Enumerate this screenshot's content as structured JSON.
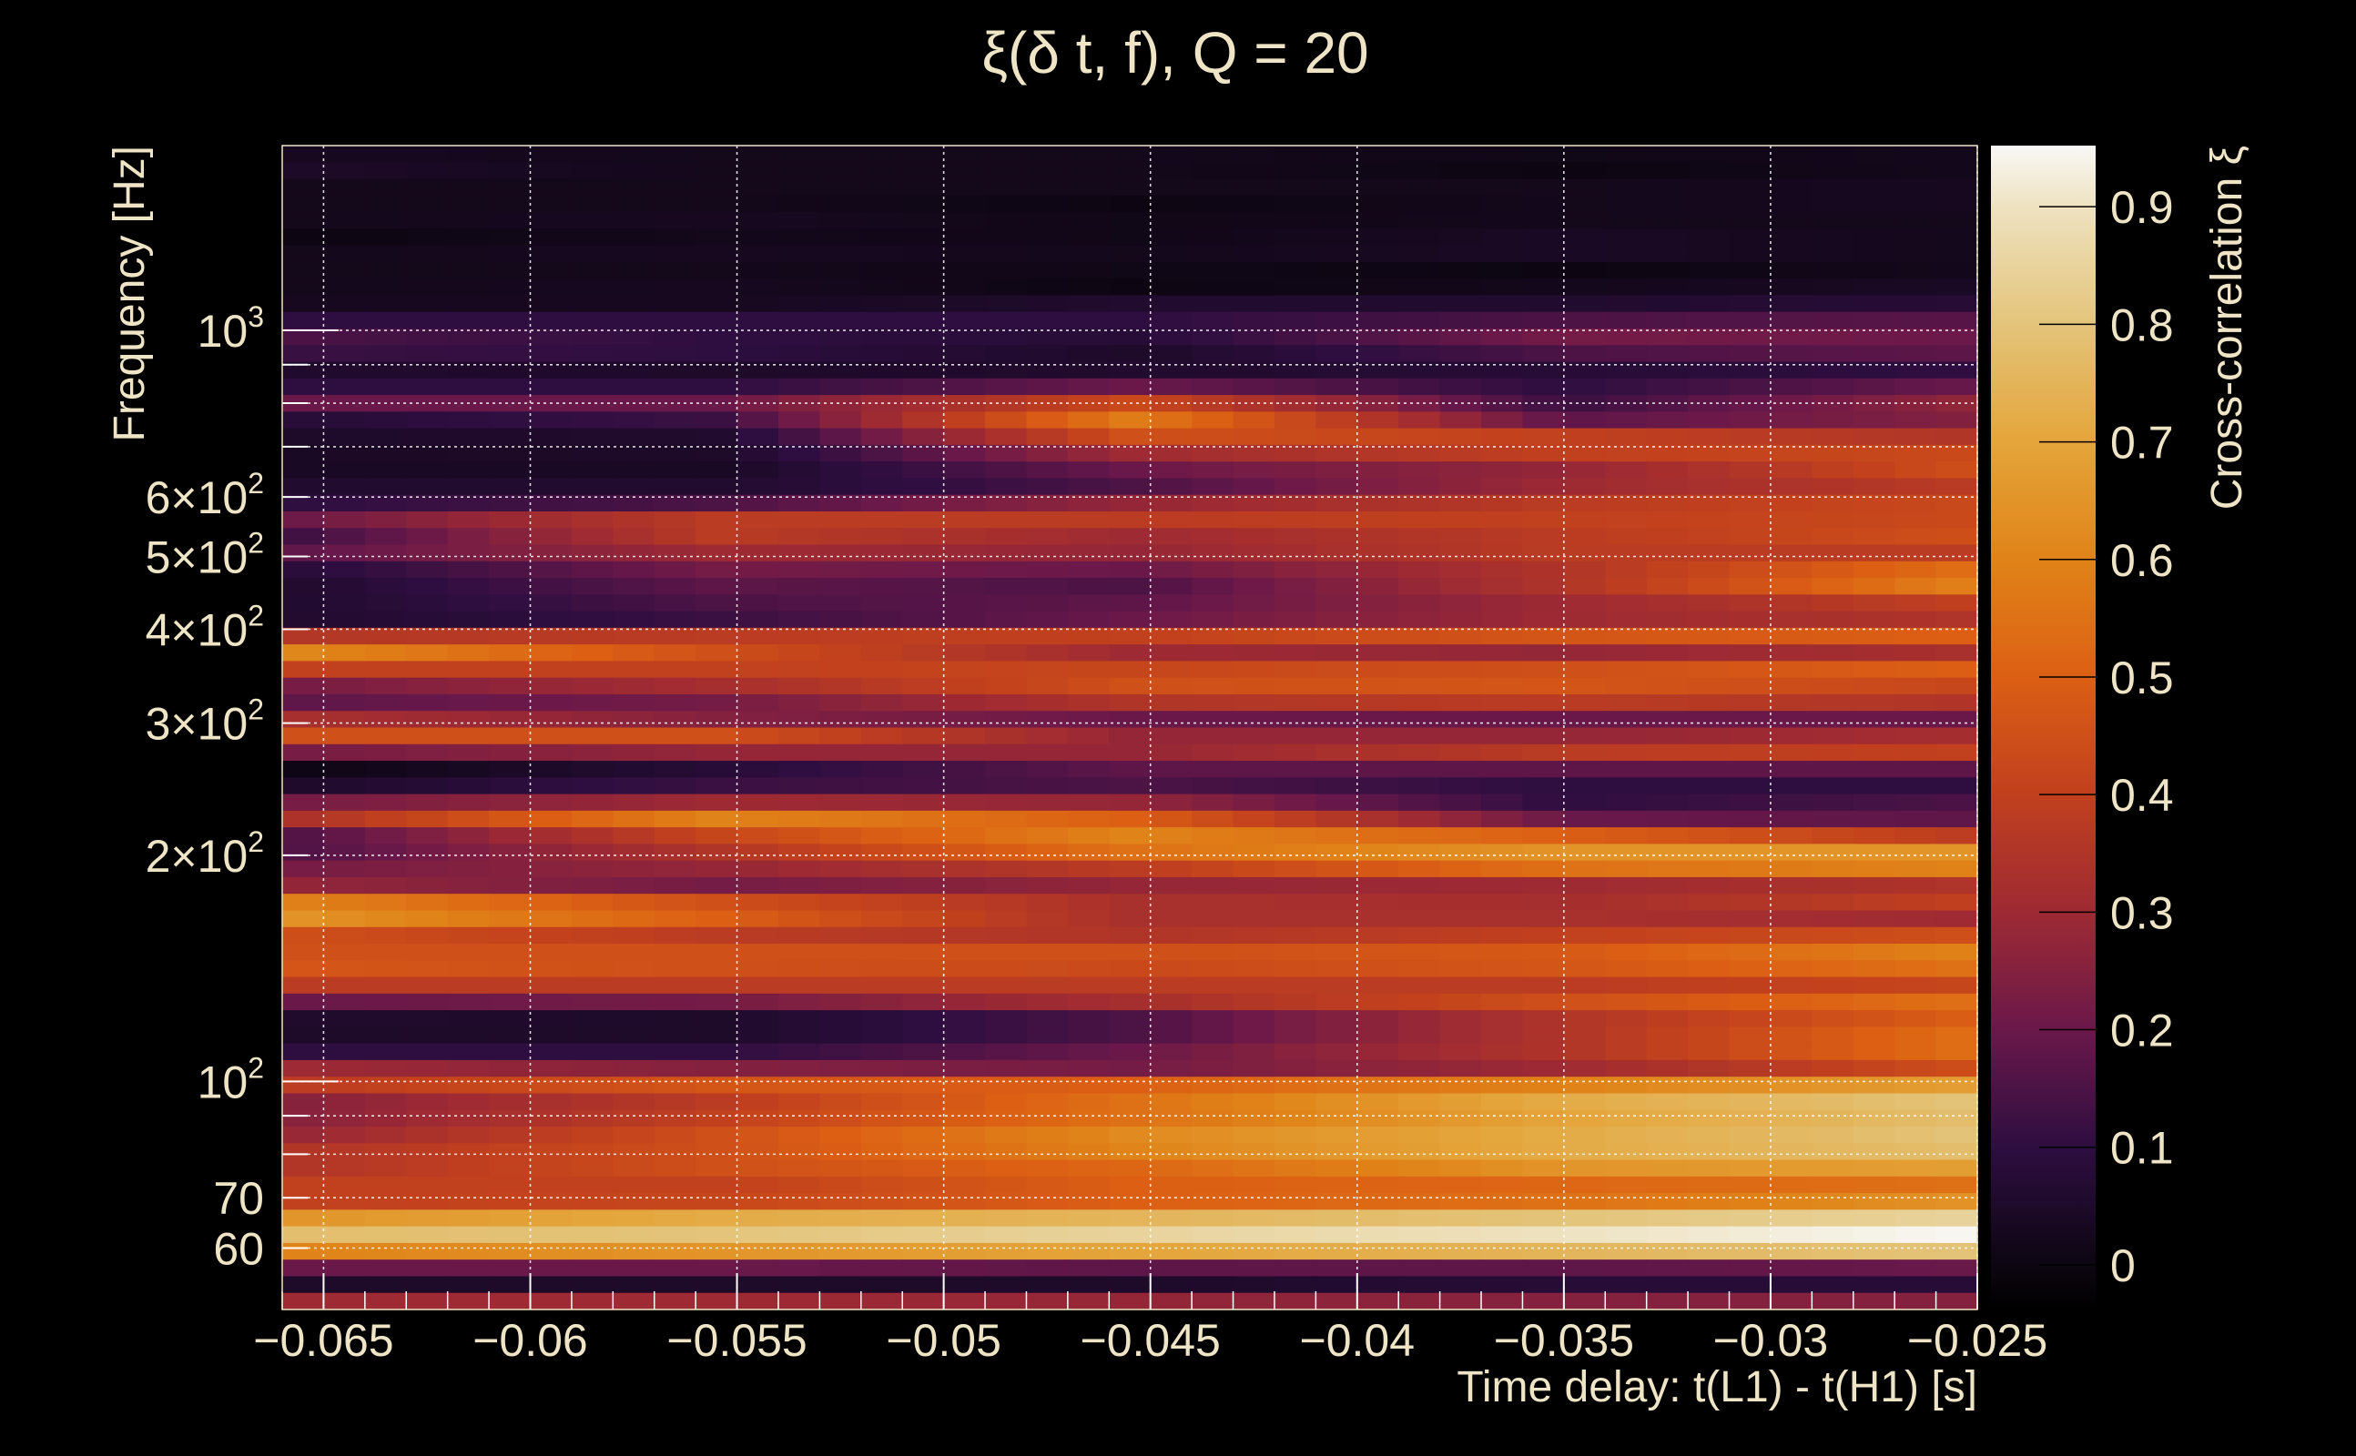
{
  "chart_data": {
    "type": "heatmap",
    "title": "ξ(δ t, f), Q = 20",
    "xlabel": "Time delay: t(L1) - t(H1) [s]",
    "ylabel": "Frequency [Hz]",
    "colorbar_label": "Cross-correlation ξ",
    "x_range": [
      -0.066,
      -0.025
    ],
    "x_bin_width": 0.001,
    "y_range_hz": [
      49.7,
      1762
    ],
    "y_scale": "log",
    "z_range": [
      -0.038,
      0.952
    ],
    "grid": true,
    "x_ticks": [
      -0.065,
      -0.06,
      -0.055,
      -0.05,
      -0.045,
      -0.04,
      -0.035,
      -0.03,
      -0.025
    ],
    "x_tick_labels": [
      "−0.065",
      "−0.06",
      "−0.055",
      "−0.05",
      "−0.045",
      "−0.04",
      "−0.035",
      "−0.03",
      "−0.025"
    ],
    "y_ticks": [
      {
        "value": 1000,
        "base": "10",
        "exp": "3"
      },
      {
        "value": 600,
        "base": "6×10",
        "exp": "2"
      },
      {
        "value": 500,
        "base": "5×10",
        "exp": "2"
      },
      {
        "value": 400,
        "base": "4×10",
        "exp": "2"
      },
      {
        "value": 300,
        "base": "3×10",
        "exp": "2"
      },
      {
        "value": 200,
        "base": "2×10",
        "exp": "2"
      },
      {
        "value": 100,
        "base": "10",
        "exp": "2"
      },
      {
        "value": 70,
        "base": "70",
        "exp": ""
      },
      {
        "value": 60,
        "base": "60",
        "exp": ""
      }
    ],
    "y_minor_ticks": [
      60,
      70,
      80,
      90,
      100,
      200,
      300,
      400,
      500,
      600,
      700,
      800,
      900,
      1000
    ],
    "colorbar_ticks": [
      0,
      0.1,
      0.2,
      0.3,
      0.4,
      0.5,
      0.6,
      0.7,
      0.8,
      0.9
    ],
    "colorbar_tick_labels": [
      "0",
      "0.1",
      "0.2",
      "0.3",
      "0.4",
      "0.5",
      "0.6",
      "0.7",
      "0.8",
      "0.9"
    ],
    "colormap": [
      [
        -0.038,
        "#000000"
      ],
      [
        0.0,
        "#0d0612"
      ],
      [
        0.1,
        "#2e0e40"
      ],
      [
        0.2,
        "#6a184a"
      ],
      [
        0.3,
        "#9e2a33"
      ],
      [
        0.4,
        "#c1401e"
      ],
      [
        0.5,
        "#dc5f14"
      ],
      [
        0.6,
        "#e08318"
      ],
      [
        0.7,
        "#e4a53a"
      ],
      [
        0.8,
        "#e3c47a"
      ],
      [
        0.9,
        "#eee2c0"
      ],
      [
        0.952,
        "#f8f8f6"
      ]
    ],
    "row_anchor_x": [
      -0.066,
      -0.0555,
      -0.0455,
      -0.035,
      -0.025
    ],
    "rows_high_to_low_freq": [
      [
        0.03,
        0.02,
        0.02,
        0.01,
        0.02
      ],
      [
        0.05,
        0.02,
        0.02,
        0.0,
        0.02
      ],
      [
        0.02,
        0.02,
        0.02,
        0.02,
        0.03
      ],
      [
        0.02,
        0.02,
        0.0,
        0.02,
        0.03
      ],
      [
        0.02,
        0.03,
        0.01,
        0.02,
        0.02
      ],
      [
        0.0,
        0.02,
        0.01,
        0.04,
        0.02
      ],
      [
        0.02,
        0.03,
        0.02,
        0.04,
        0.02
      ],
      [
        0.02,
        0.02,
        0.01,
        0.0,
        0.02
      ],
      [
        0.02,
        0.03,
        0.0,
        0.02,
        0.04
      ],
      [
        0.03,
        0.03,
        0.06,
        0.06,
        0.08
      ],
      [
        0.1,
        0.1,
        0.1,
        0.15,
        0.17
      ],
      [
        0.15,
        0.1,
        0.08,
        0.22,
        0.2
      ],
      [
        0.12,
        0.1,
        0.05,
        0.15,
        0.18
      ],
      [
        0.06,
        0.05,
        0.06,
        0.08,
        0.1
      ],
      [
        0.1,
        0.1,
        0.2,
        0.1,
        0.2
      ],
      [
        0.2,
        0.2,
        0.43,
        0.12,
        0.28
      ],
      [
        0.08,
        0.12,
        0.58,
        0.18,
        0.25
      ],
      [
        0.05,
        0.06,
        0.45,
        0.4,
        0.35
      ],
      [
        0.04,
        0.05,
        0.3,
        0.4,
        0.43
      ],
      [
        0.04,
        0.04,
        0.2,
        0.28,
        0.45
      ],
      [
        0.06,
        0.06,
        0.15,
        0.3,
        0.38
      ],
      [
        0.1,
        0.15,
        0.28,
        0.38,
        0.43
      ],
      [
        0.2,
        0.38,
        0.38,
        0.4,
        0.43
      ],
      [
        0.12,
        0.38,
        0.3,
        0.38,
        0.45
      ],
      [
        0.18,
        0.3,
        0.28,
        0.38,
        0.38
      ],
      [
        0.08,
        0.22,
        0.2,
        0.35,
        0.55
      ],
      [
        0.06,
        0.18,
        0.15,
        0.35,
        0.6
      ],
      [
        0.06,
        0.15,
        0.18,
        0.3,
        0.4
      ],
      [
        0.06,
        0.12,
        0.2,
        0.3,
        0.35
      ],
      [
        0.36,
        0.38,
        0.4,
        0.47,
        0.5
      ],
      [
        0.62,
        0.45,
        0.3,
        0.28,
        0.33
      ],
      [
        0.4,
        0.4,
        0.42,
        0.45,
        0.5
      ],
      [
        0.22,
        0.32,
        0.45,
        0.47,
        0.42
      ],
      [
        0.18,
        0.22,
        0.35,
        0.38,
        0.35
      ],
      [
        0.33,
        0.25,
        0.2,
        0.2,
        0.2
      ],
      [
        0.45,
        0.45,
        0.28,
        0.28,
        0.32
      ],
      [
        0.22,
        0.28,
        0.28,
        0.38,
        0.4
      ],
      [
        0.0,
        0.08,
        0.18,
        0.18,
        0.18
      ],
      [
        0.05,
        0.12,
        0.15,
        0.1,
        0.1
      ],
      [
        0.22,
        0.3,
        0.28,
        0.1,
        0.15
      ],
      [
        0.33,
        0.6,
        0.5,
        0.2,
        0.18
      ],
      [
        0.15,
        0.42,
        0.6,
        0.5,
        0.38
      ],
      [
        0.15,
        0.35,
        0.55,
        0.65,
        0.65
      ],
      [
        0.22,
        0.28,
        0.38,
        0.55,
        0.6
      ],
      [
        0.28,
        0.22,
        0.28,
        0.3,
        0.35
      ],
      [
        0.6,
        0.45,
        0.33,
        0.32,
        0.4
      ],
      [
        0.65,
        0.5,
        0.33,
        0.33,
        0.3
      ],
      [
        0.45,
        0.38,
        0.35,
        0.4,
        0.45
      ],
      [
        0.45,
        0.45,
        0.45,
        0.48,
        0.6
      ],
      [
        0.47,
        0.45,
        0.43,
        0.47,
        0.55
      ],
      [
        0.38,
        0.38,
        0.38,
        0.38,
        0.42
      ],
      [
        0.2,
        0.22,
        0.32,
        0.45,
        0.55
      ],
      [
        0.06,
        0.05,
        0.15,
        0.35,
        0.5
      ],
      [
        0.05,
        0.05,
        0.15,
        0.35,
        0.55
      ],
      [
        0.1,
        0.1,
        0.2,
        0.35,
        0.55
      ],
      [
        0.3,
        0.25,
        0.22,
        0.3,
        0.45
      ],
      [
        0.38,
        0.47,
        0.5,
        0.6,
        0.68
      ],
      [
        0.25,
        0.38,
        0.55,
        0.72,
        0.8
      ],
      [
        0.25,
        0.4,
        0.55,
        0.7,
        0.78
      ],
      [
        0.28,
        0.45,
        0.62,
        0.72,
        0.8
      ],
      [
        0.35,
        0.45,
        0.6,
        0.72,
        0.78
      ],
      [
        0.35,
        0.45,
        0.52,
        0.65,
        0.68
      ],
      [
        0.4,
        0.4,
        0.5,
        0.52,
        0.55
      ],
      [
        0.4,
        0.42,
        0.5,
        0.55,
        0.65
      ],
      [
        0.65,
        0.72,
        0.75,
        0.8,
        0.85
      ],
      [
        0.78,
        0.8,
        0.85,
        0.9,
        0.95
      ],
      [
        0.6,
        0.65,
        0.7,
        0.75,
        0.8
      ],
      [
        0.2,
        0.2,
        0.18,
        0.18,
        0.2
      ],
      [
        0.05,
        0.05,
        0.05,
        0.08,
        0.08
      ],
      [
        0.3,
        0.3,
        0.28,
        0.25,
        0.25
      ]
    ]
  }
}
